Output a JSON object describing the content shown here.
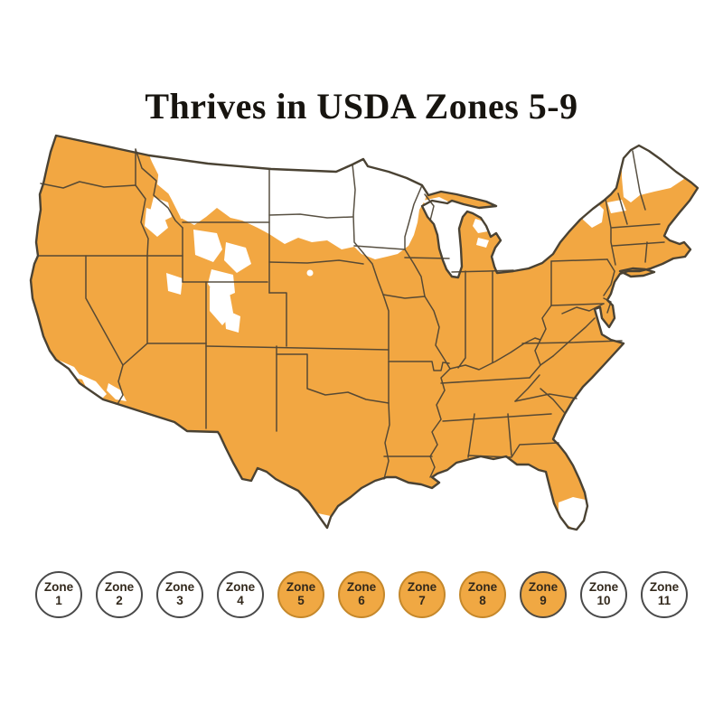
{
  "title": "Thrives in USDA Zones 5-9",
  "map": {
    "region": "United States (contiguous states)",
    "highlighted_zone_range": "5-9",
    "orange_fill_meaning": "USDA Zones 5-9 (thrives)",
    "white_fill_meaning": "Outside Zones 5-9"
  },
  "colors": {
    "zone_fill": "#F2A742",
    "excluded_fill": "#FFFFFF",
    "map_border": "#4A4233",
    "legend_active_fill": "#F0A843",
    "legend_active_stroke": "#C5882B",
    "legend_inactive_fill": "#FFFFFF",
    "legend_inactive_stroke": "#4A4A4A",
    "text": "#17140F"
  },
  "legend": {
    "zones": [
      {
        "label": "Zone",
        "number": "1",
        "active": false
      },
      {
        "label": "Zone",
        "number": "2",
        "active": false
      },
      {
        "label": "Zone",
        "number": "3",
        "active": false
      },
      {
        "label": "Zone",
        "number": "4",
        "active": false
      },
      {
        "label": "Zone",
        "number": "5",
        "active": true
      },
      {
        "label": "Zone",
        "number": "6",
        "active": true
      },
      {
        "label": "Zone",
        "number": "7",
        "active": true
      },
      {
        "label": "Zone",
        "number": "8",
        "active": true
      },
      {
        "label": "Zone",
        "number": "9",
        "active": true,
        "stroke": "#4F4A42"
      },
      {
        "label": "Zone",
        "number": "10",
        "active": false
      },
      {
        "label": "Zone",
        "number": "11",
        "active": false
      }
    ]
  }
}
